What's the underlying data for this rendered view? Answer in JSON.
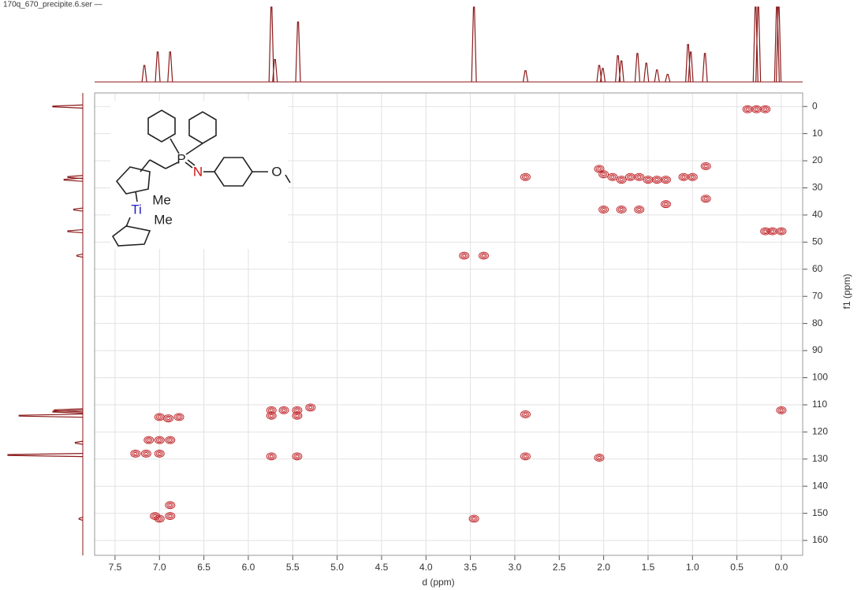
{
  "chart_data": {
    "type": "scatter",
    "title": "170q_670_precipite.6.ser —",
    "x_label": "d (ppm)",
    "y_label": "f1 (ppm)",
    "color": "#c0262b",
    "line_color": "#8b1a1a",
    "xlim": [
      7.73,
      -0.24
    ],
    "ylim": [
      -5,
      165.5
    ],
    "y_inverted": true,
    "grid": true,
    "xticks": [
      7.5,
      {
        "value": 7.0,
        "label": "7.0"
      },
      6.5,
      {
        "value": 6.0,
        "label": "6.0"
      },
      5.5,
      {
        "value": 5.0,
        "label": "5.0"
      },
      4.5,
      {
        "value": 4.0,
        "label": "4.0"
      },
      3.5,
      {
        "value": 3.0,
        "label": "3.0"
      },
      2.5,
      {
        "value": 2.0,
        "label": "2.0"
      },
      1.5,
      {
        "value": 1.0,
        "label": "1.0"
      },
      0.5,
      {
        "value": 0.0,
        "label": "0.0"
      }
    ],
    "yticks": [
      0,
      10,
      20,
      30,
      40,
      50,
      60,
      70,
      80,
      90,
      100,
      110,
      120,
      130,
      140,
      150,
      160
    ],
    "x": [
      0.38,
      0.28,
      0.18,
      2.05,
      2.0,
      1.9,
      1.8,
      1.7,
      1.6,
      1.5,
      1.4,
      1.3,
      1.1,
      1.0,
      0.85,
      0.85,
      1.3,
      1.6,
      1.8,
      2.0,
      2.88,
      0.18,
      0.1,
      0.0,
      3.57,
      3.35,
      7.0,
      6.9,
      6.78,
      5.74,
      5.6,
      5.45,
      5.3,
      5.74,
      5.45,
      2.88,
      0.0,
      7.12,
      7.0,
      6.88,
      7.27,
      7.15,
      7.0,
      5.74,
      5.45,
      2.88,
      2.05,
      6.88,
      6.88,
      7.0,
      7.05,
      3.46
    ],
    "values": [
      1,
      1,
      1,
      23,
      25,
      26,
      27,
      26,
      26,
      27,
      27,
      27,
      26,
      26,
      22,
      34,
      36,
      38,
      38,
      38,
      26,
      46,
      46,
      46,
      55,
      55,
      114.5,
      115,
      114.5,
      112,
      112,
      112,
      111,
      114,
      114,
      113.5,
      112,
      123,
      123,
      123,
      128,
      128,
      128,
      129,
      129,
      129,
      129.5,
      147,
      151,
      152,
      151,
      152
    ],
    "x_projection": {
      "x": [
        7.17,
        7.02,
        6.88,
        5.74,
        5.7,
        5.44,
        3.46,
        2.88,
        2.05,
        2.01,
        1.84,
        1.8,
        1.62,
        1.52,
        1.4,
        1.28,
        1.05,
        1.02,
        0.86,
        0.29,
        0.26,
        0.05,
        0.03
      ],
      "values": [
        22,
        40,
        40,
        100,
        30,
        80,
        100,
        15,
        22,
        18,
        35,
        28,
        38,
        25,
        16,
        10,
        50,
        40,
        38,
        100,
        100,
        100,
        100
      ]
    },
    "y_projection": {
      "y": [
        0,
        26,
        27,
        38,
        46,
        55,
        112,
        112.5,
        114,
        124,
        128.5,
        152
      ],
      "values": [
        40,
        20,
        25,
        12,
        20,
        8,
        38,
        40,
        85,
        10,
        100,
        5
      ]
    },
    "annotations": [
      "P",
      "N",
      "O",
      "Ti",
      "Me",
      "Me"
    ]
  }
}
